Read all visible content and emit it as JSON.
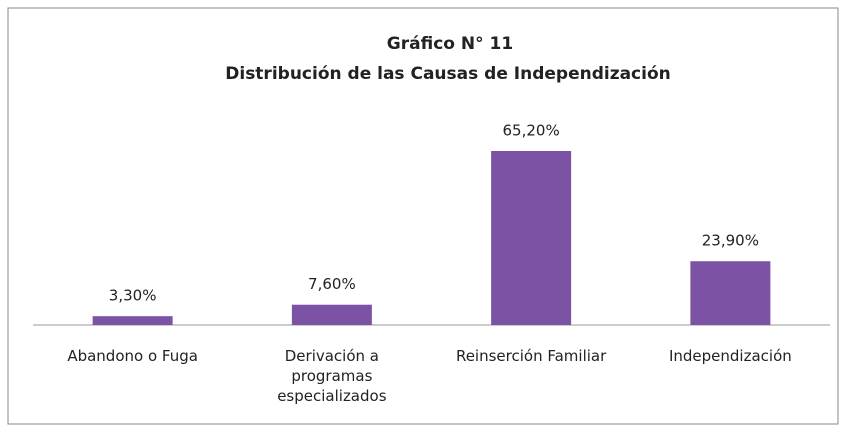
{
  "chart_data": {
    "type": "bar",
    "title": "Gráfico N° 11",
    "subtitle": "Distribución de las Causas de Independización",
    "categories": [
      "Abandono o Fuga",
      "Derivación a programas especializados",
      "Reinserción Familiar",
      "Independización"
    ],
    "values": [
      3.3,
      7.6,
      65.2,
      23.9
    ],
    "value_labels": [
      "3,30%",
      "7,60%",
      "65,20%",
      "23,90%"
    ],
    "color": "#7b52a4"
  }
}
